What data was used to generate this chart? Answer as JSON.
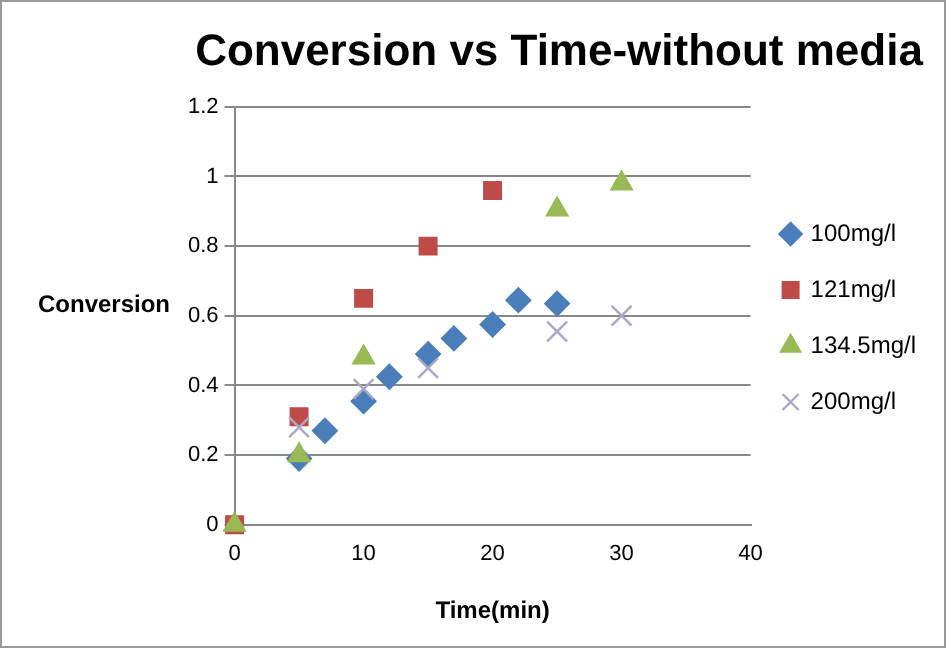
{
  "chart_data": {
    "type": "scatter",
    "title": "Conversion vs Time-without media",
    "xlabel": "Time(min)",
    "ylabel": "Conversion",
    "xlim": [
      0,
      40
    ],
    "xticks": [
      0,
      10,
      20,
      30,
      40
    ],
    "ylim": [
      0,
      1.2
    ],
    "yticks": [
      0,
      0.2,
      0.4,
      0.6,
      0.8,
      1,
      1.2
    ],
    "grid": "y",
    "legend": "right",
    "series": [
      {
        "name": "100mg/l",
        "color": "#4a7ebb",
        "marker": "diamond",
        "x": [
          5,
          7,
          10,
          12,
          15,
          17,
          20,
          22,
          25
        ],
        "values": [
          0.19,
          0.27,
          0.355,
          0.425,
          0.49,
          0.535,
          0.575,
          0.645,
          0.635
        ]
      },
      {
        "name": "121mg/l",
        "color": "#be4b48",
        "marker": "square",
        "x": [
          0,
          5,
          10,
          15,
          20
        ],
        "values": [
          0,
          0.31,
          0.65,
          0.8,
          0.96
        ]
      },
      {
        "name": "134.5mg/l",
        "color": "#98b954",
        "marker": "triangle",
        "x": [
          0,
          5,
          10,
          25,
          30
        ],
        "values": [
          0,
          0.2,
          0.48,
          0.905,
          0.98
        ]
      },
      {
        "name": "200mg/l",
        "color": "#aaa6c8",
        "marker": "cross",
        "x": [
          5,
          10,
          15,
          25,
          30
        ],
        "values": [
          0.28,
          0.39,
          0.45,
          0.555,
          0.6
        ]
      }
    ]
  }
}
